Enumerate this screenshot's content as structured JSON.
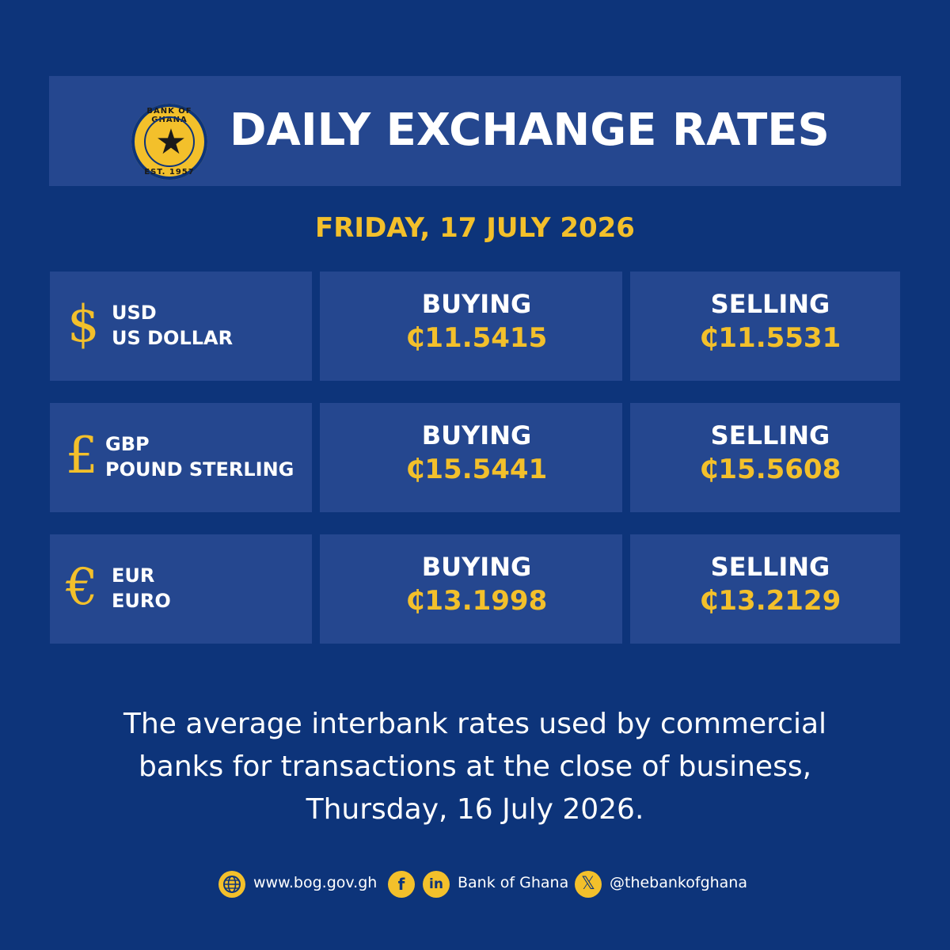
{
  "header": {
    "title": "DAILY EXCHANGE RATES",
    "logo": {
      "top_text": "BANK OF GHANA",
      "bottom_text": "EST. 1957",
      "icon": "star-icon"
    }
  },
  "date": "FRIDAY, 17 JULY 2026",
  "rates": [
    {
      "symbol": "$",
      "code": "USD",
      "name": "US DOLLAR",
      "buying_label": "BUYING",
      "buying_value": "₵11.5415",
      "selling_label": "SELLING",
      "selling_value": "₵11.5531"
    },
    {
      "symbol": "£",
      "code": "GBP",
      "name": "POUND STERLING",
      "buying_label": "BUYING",
      "buying_value": "₵15.5441",
      "selling_label": "SELLING",
      "selling_value": "₵15.5608"
    },
    {
      "symbol": "€",
      "code": "EUR",
      "name": "EURO",
      "buying_label": "BUYING",
      "buying_value": "₵13.1998",
      "selling_label": "SELLING",
      "selling_value": "₵13.2129"
    }
  ],
  "footnote": {
    "line1": "The average interbank rates used by commercial",
    "line2": "banks for transactions at the close of business,",
    "line3": "Thursday, 16 July 2026."
  },
  "social": {
    "website": "www.bog.gov.gh",
    "website_icon": "globe-icon",
    "facebook_icon": "facebook-icon",
    "linkedin_icon": "linkedin-icon",
    "name": "Bank of Ghana",
    "x_icon": "x-icon",
    "handle": "@thebankofghana"
  },
  "colors": {
    "background": "#0d347a",
    "panel": "#25478f",
    "accent": "#f3c02b",
    "text": "#ffffff"
  }
}
